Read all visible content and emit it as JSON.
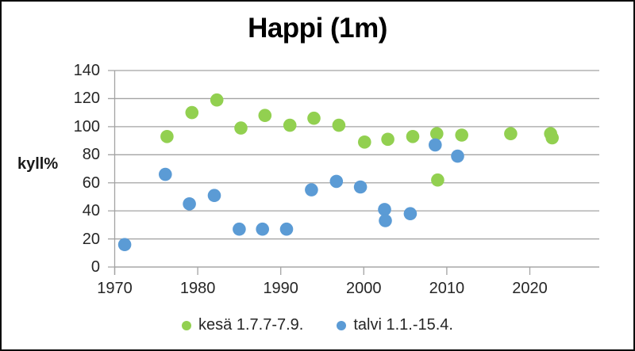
{
  "chart_data": {
    "type": "scatter",
    "title": "Happi (1m)",
    "xlabel": "",
    "ylabel": "kyll%",
    "ylim": [
      0,
      140
    ],
    "xlim": [
      1970,
      2028.4
    ],
    "y_ticks": [
      0,
      20,
      40,
      60,
      80,
      100,
      120,
      140
    ],
    "x_ticks": [
      1970,
      1980,
      1990,
      2000,
      2010,
      2020
    ],
    "grid": "horizontal",
    "legend_position": "bottom",
    "axis_color": "#a3a3a3",
    "tick_label_color": "#262626",
    "series": [
      {
        "name": "kesä 1.7.7-7.9.",
        "color": "#92d050",
        "points": [
          [
            1976.3,
            93
          ],
          [
            1979.3,
            110
          ],
          [
            1982.3,
            119
          ],
          [
            1985.2,
            99
          ],
          [
            1988.1,
            108
          ],
          [
            1991.1,
            101
          ],
          [
            1994.0,
            106
          ],
          [
            1997.0,
            101
          ],
          [
            2000.1,
            89
          ],
          [
            2002.9,
            91
          ],
          [
            2005.9,
            93
          ],
          [
            2008.8,
            95
          ],
          [
            2008.9,
            62
          ],
          [
            2011.8,
            94
          ],
          [
            2017.7,
            95
          ],
          [
            2022.5,
            95
          ],
          [
            2022.7,
            92
          ]
        ]
      },
      {
        "name": "talvi 1.1.-15.4.",
        "color": "#5b9bd5",
        "points": [
          [
            1971.2,
            16
          ],
          [
            1976.1,
            66
          ],
          [
            1979.0,
            45
          ],
          [
            1982.0,
            51
          ],
          [
            1985.0,
            27
          ],
          [
            1987.8,
            27
          ],
          [
            1990.7,
            27
          ],
          [
            1993.7,
            55
          ],
          [
            1996.7,
            61
          ],
          [
            1999.6,
            57
          ],
          [
            2002.5,
            41
          ],
          [
            2002.6,
            33
          ],
          [
            2005.6,
            38
          ],
          [
            2008.6,
            87
          ],
          [
            2011.3,
            79
          ]
        ]
      }
    ]
  }
}
